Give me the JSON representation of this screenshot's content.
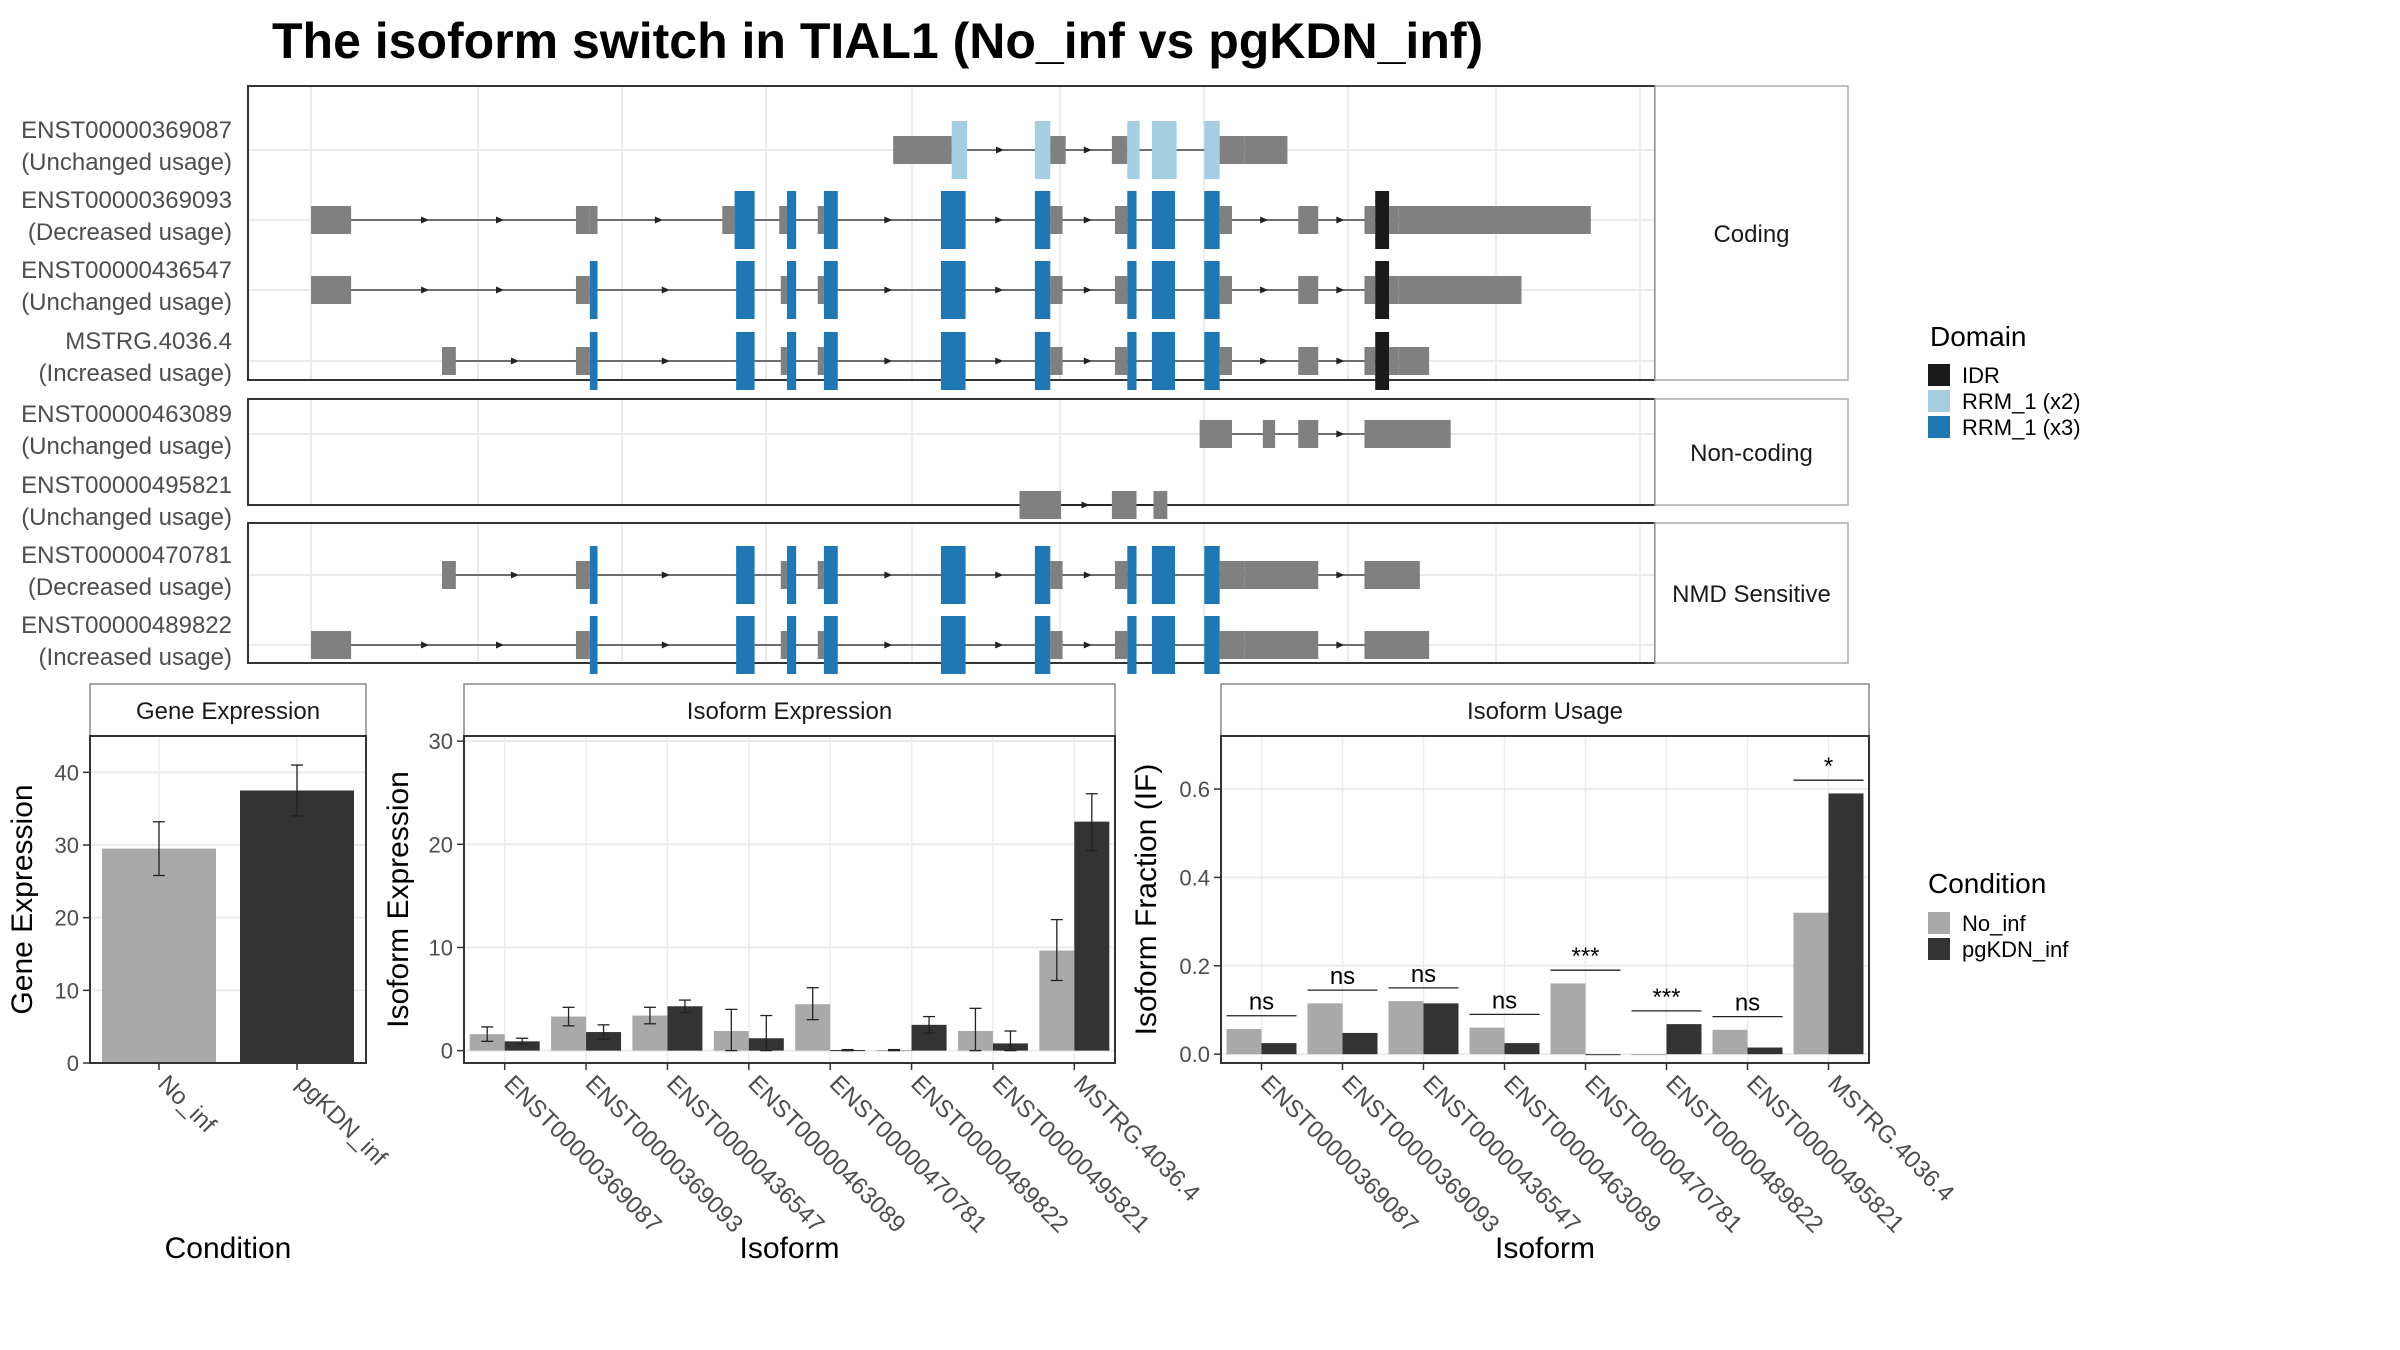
{
  "title": "The isoform switch in TIAL1 (No_inf vs pgKDN_inf)",
  "colors": {
    "exon": "#808080",
    "IDR": "#1a1a1a",
    "RRM_x2": "#a6cee3",
    "RRM_x3": "#1f78b4",
    "No_inf": "#a9a9a9",
    "pgKDN_inf": "#333333",
    "panel_border": "#333333",
    "grid": "#ebebeb"
  },
  "domain_legend": {
    "title": "Domain",
    "items": [
      {
        "key": "IDR",
        "label": "IDR"
      },
      {
        "key": "RRM_x2",
        "label": "RRM_1 (x2)"
      },
      {
        "key": "RRM_x3",
        "label": "RRM_1 (x3)"
      }
    ]
  },
  "condition_legend": {
    "title": "Condition",
    "items": [
      {
        "key": "No_inf",
        "label": "No_inf"
      },
      {
        "key": "pgKDN_inf",
        "label": "pgKDN_inf"
      }
    ]
  },
  "chart_data": [
    {
      "type": "gene-structure",
      "title": "The isoform switch in TIAL1 (No_inf vs pgKDN_inf)",
      "groups": [
        {
          "strip": "Coding",
          "transcripts": [
            {
              "name": "ENST00000369087",
              "usage": "(Unchanged usage)",
              "start": 2,
              "exons": [
                [
                  580,
                  618,
                  "exon"
                ],
                [
                  618,
                  628,
                  "RRM_x2"
                ],
                [
                  672,
                  682,
                  "RRM_x2"
                ],
                [
                  682,
                  692,
                  "exon"
                ],
                [
                  722,
                  732,
                  "exon"
                ],
                [
                  732,
                  740,
                  "RRM_x2"
                ],
                [
                  748,
                  764,
                  "RRM_x2"
                ],
                [
                  782,
                  792,
                  "RRM_x2"
                ],
                [
                  792,
                  808,
                  "exon"
                ],
                [
                  808,
                  836,
                  "exon"
                ]
              ]
            },
            {
              "name": "ENST00000369093",
              "usage": "(Decreased usage)",
              "start": 0,
              "exons": [
                [
                  202,
                  228,
                  "exon"
                ],
                [
                  374,
                  383,
                  "exon"
                ],
                [
                  383,
                  388,
                  "exon"
                ],
                [
                  469,
                  477,
                  "exon"
                ],
                [
                  477,
                  490,
                  "RRM_x3"
                ],
                [
                  506,
                  511,
                  "exon"
                ],
                [
                  511,
                  517,
                  "RRM_x3"
                ],
                [
                  531,
                  535,
                  "exon"
                ],
                [
                  535,
                  544,
                  "RRM_x3"
                ],
                [
                  611,
                  627,
                  "RRM_x3"
                ],
                [
                  672,
                  682,
                  "RRM_x3"
                ],
                [
                  682,
                  690,
                  "exon"
                ],
                [
                  724,
                  732,
                  "exon"
                ],
                [
                  732,
                  738,
                  "RRM_x3"
                ],
                [
                  748,
                  763,
                  "RRM_x3"
                ],
                [
                  782,
                  792,
                  "RRM_x3"
                ],
                [
                  792,
                  800,
                  "exon"
                ],
                [
                  843,
                  856,
                  "exon"
                ],
                [
                  886,
                  893,
                  "exon"
                ],
                [
                  893,
                  902,
                  "IDR"
                ],
                [
                  902,
                  908,
                  "exon"
                ],
                [
                  908,
                  1033,
                  "exon"
                ]
              ]
            },
            {
              "name": "ENST00000436547",
              "usage": "(Unchanged usage)",
              "start": 0,
              "exons": [
                [
                  202,
                  228,
                  "exon"
                ],
                [
                  374,
                  383,
                  "exon"
                ],
                [
                  383,
                  388,
                  "RRM_x3"
                ],
                [
                  478,
                  490,
                  "RRM_x3"
                ],
                [
                  507,
                  511,
                  "exon"
                ],
                [
                  511,
                  517,
                  "RRM_x3"
                ],
                [
                  531,
                  535,
                  "exon"
                ],
                [
                  535,
                  544,
                  "RRM_x3"
                ],
                [
                  611,
                  627,
                  "RRM_x3"
                ],
                [
                  672,
                  682,
                  "RRM_x3"
                ],
                [
                  682,
                  690,
                  "exon"
                ],
                [
                  724,
                  732,
                  "exon"
                ],
                [
                  732,
                  738,
                  "RRM_x3"
                ],
                [
                  748,
                  763,
                  "RRM_x3"
                ],
                [
                  782,
                  792,
                  "RRM_x3"
                ],
                [
                  792,
                  800,
                  "exon"
                ],
                [
                  843,
                  856,
                  "exon"
                ],
                [
                  886,
                  893,
                  "exon"
                ],
                [
                  893,
                  902,
                  "IDR"
                ],
                [
                  902,
                  908,
                  "exon"
                ],
                [
                  908,
                  988,
                  "exon"
                ]
              ]
            },
            {
              "name": "MSTRG.4036.4",
              "usage": "(Increased usage)",
              "start": 0,
              "exons": [
                [
                  287,
                  296,
                  "exon"
                ],
                [
                  374,
                  383,
                  "exon"
                ],
                [
                  383,
                  388,
                  "RRM_x3"
                ],
                [
                  478,
                  490,
                  "RRM_x3"
                ],
                [
                  507,
                  511,
                  "exon"
                ],
                [
                  511,
                  517,
                  "RRM_x3"
                ],
                [
                  531,
                  535,
                  "exon"
                ],
                [
                  535,
                  544,
                  "RRM_x3"
                ],
                [
                  611,
                  627,
                  "RRM_x3"
                ],
                [
                  672,
                  682,
                  "RRM_x3"
                ],
                [
                  682,
                  690,
                  "exon"
                ],
                [
                  724,
                  732,
                  "exon"
                ],
                [
                  732,
                  738,
                  "RRM_x3"
                ],
                [
                  748,
                  763,
                  "RRM_x3"
                ],
                [
                  782,
                  792,
                  "RRM_x3"
                ],
                [
                  792,
                  800,
                  "exon"
                ],
                [
                  843,
                  856,
                  "exon"
                ],
                [
                  886,
                  893,
                  "exon"
                ],
                [
                  893,
                  902,
                  "IDR"
                ],
                [
                  902,
                  908,
                  "exon"
                ],
                [
                  908,
                  928,
                  "exon"
                ]
              ]
            }
          ]
        },
        {
          "strip": "Non-coding",
          "transcripts": [
            {
              "name": "ENST00000463089",
              "usage": "(Unchanged usage)",
              "start": 0,
              "exons": [
                [
                  779,
                  800,
                  "exon"
                ],
                [
                  820,
                  828,
                  "exon"
                ],
                [
                  843,
                  856,
                  "exon"
                ],
                [
                  886,
                  942,
                  "exon"
                ]
              ]
            },
            {
              "name": "ENST00000495821",
              "usage": "(Unchanged usage)",
              "start": 0,
              "exons": [
                [
                  662,
                  689,
                  "exon"
                ],
                [
                  722,
                  738,
                  "exon"
                ],
                [
                  749,
                  758,
                  "exon"
                ]
              ]
            }
          ]
        },
        {
          "strip": "NMD Sensitive",
          "transcripts": [
            {
              "name": "ENST00000470781",
              "usage": "(Decreased usage)",
              "start": 0,
              "exons": [
                [
                  287,
                  296,
                  "exon"
                ],
                [
                  374,
                  383,
                  "exon"
                ],
                [
                  383,
                  388,
                  "RRM_x3"
                ],
                [
                  478,
                  490,
                  "RRM_x3"
                ],
                [
                  507,
                  511,
                  "exon"
                ],
                [
                  511,
                  517,
                  "RRM_x3"
                ],
                [
                  531,
                  535,
                  "exon"
                ],
                [
                  535,
                  544,
                  "RRM_x3"
                ],
                [
                  611,
                  627,
                  "RRM_x3"
                ],
                [
                  672,
                  682,
                  "RRM_x3"
                ],
                [
                  682,
                  690,
                  "exon"
                ],
                [
                  724,
                  732,
                  "exon"
                ],
                [
                  732,
                  738,
                  "RRM_x3"
                ],
                [
                  748,
                  763,
                  "RRM_x3"
                ],
                [
                  782,
                  792,
                  "RRM_x3"
                ],
                [
                  792,
                  808,
                  "exon"
                ],
                [
                  808,
                  856,
                  "exon"
                ],
                [
                  886,
                  922,
                  "exon"
                ]
              ]
            },
            {
              "name": "ENST00000489822",
              "usage": "(Increased usage)",
              "start": 0,
              "exons": [
                [
                  202,
                  228,
                  "exon"
                ],
                [
                  374,
                  383,
                  "exon"
                ],
                [
                  383,
                  388,
                  "RRM_x3"
                ],
                [
                  478,
                  490,
                  "RRM_x3"
                ],
                [
                  507,
                  511,
                  "exon"
                ],
                [
                  511,
                  517,
                  "RRM_x3"
                ],
                [
                  531,
                  535,
                  "exon"
                ],
                [
                  535,
                  544,
                  "RRM_x3"
                ],
                [
                  611,
                  627,
                  "RRM_x3"
                ],
                [
                  672,
                  682,
                  "RRM_x3"
                ],
                [
                  682,
                  690,
                  "exon"
                ],
                [
                  724,
                  732,
                  "exon"
                ],
                [
                  732,
                  738,
                  "RRM_x3"
                ],
                [
                  748,
                  763,
                  "RRM_x3"
                ],
                [
                  782,
                  792,
                  "RRM_x3"
                ],
                [
                  792,
                  808,
                  "exon"
                ],
                [
                  808,
                  856,
                  "exon"
                ],
                [
                  886,
                  928,
                  "exon"
                ]
              ]
            }
          ]
        }
      ]
    },
    {
      "type": "bar",
      "title": "Gene Expression",
      "xlabel": "Condition",
      "ylabel": "Gene Expression",
      "ylim": [
        0,
        45
      ],
      "yticks": [
        0,
        10,
        20,
        30,
        40
      ],
      "categories": [
        "No_inf",
        "pgKDN_inf"
      ],
      "values": [
        29.5,
        37.5
      ],
      "err_low": [
        25.8,
        34.0
      ],
      "err_high": [
        33.2,
        41.0
      ],
      "colors": [
        "No_inf",
        "pgKDN_inf"
      ]
    },
    {
      "type": "bar",
      "title": "Isoform Expression",
      "xlabel": "Isoform",
      "ylabel": "Isoform Expression",
      "ylim": [
        -1.2,
        30.5
      ],
      "yticks": [
        0,
        10,
        20,
        30
      ],
      "categories": [
        "ENST00000369087",
        "ENST00000369093",
        "ENST00000436547",
        "ENST00000463089",
        "ENST00000470781",
        "ENST00000489822",
        "ENST00000495821",
        "MSTRG.4036.4"
      ],
      "series": [
        {
          "name": "No_inf",
          "values": [
            1.6,
            3.3,
            3.4,
            1.9,
            4.5,
            0.05,
            1.9,
            9.7
          ],
          "err_low": [
            0.9,
            2.4,
            2.6,
            0.0,
            3.0,
            0.0,
            0.0,
            6.8
          ],
          "err_high": [
            2.3,
            4.2,
            4.2,
            4.0,
            6.1,
            0.1,
            4.1,
            12.7
          ]
        },
        {
          "name": "pgKDN_inf",
          "values": [
            0.9,
            1.8,
            4.3,
            1.2,
            0.05,
            2.5,
            0.7,
            22.2
          ],
          "err_low": [
            0.6,
            1.1,
            3.7,
            0.0,
            0.0,
            1.7,
            0.0,
            19.4
          ],
          "err_high": [
            1.2,
            2.5,
            4.9,
            3.4,
            0.1,
            3.3,
            1.9,
            24.9
          ]
        }
      ]
    },
    {
      "type": "bar",
      "title": "Isoform Usage",
      "xlabel": "Isoform",
      "ylabel": "Isoform Fraction (IF)",
      "ylim": [
        -0.02,
        0.72
      ],
      "yticks": [
        0.0,
        0.2,
        0.4,
        0.6
      ],
      "ytick_labels": [
        "0.0",
        "0.2",
        "0.4",
        "0.6"
      ],
      "categories": [
        "ENST00000369087",
        "ENST00000369093",
        "ENST00000436547",
        "ENST00000463089",
        "ENST00000470781",
        "ENST00000489822",
        "ENST00000495821",
        "MSTRG.4036.4"
      ],
      "series": [
        {
          "name": "No_inf",
          "values": [
            0.057,
            0.115,
            0.12,
            0.06,
            0.16,
            0.0,
            0.055,
            0.32
          ]
        },
        {
          "name": "pgKDN_inf",
          "values": [
            0.025,
            0.048,
            0.115,
            0.025,
            0.0,
            0.068,
            0.015,
            0.59
          ]
        }
      ],
      "significance": [
        "ns",
        "ns",
        "ns",
        "ns",
        "***",
        "***",
        "ns",
        "*"
      ],
      "significance_y": [
        0.087,
        0.145,
        0.15,
        0.09,
        0.19,
        0.098,
        0.085,
        0.62
      ]
    }
  ]
}
